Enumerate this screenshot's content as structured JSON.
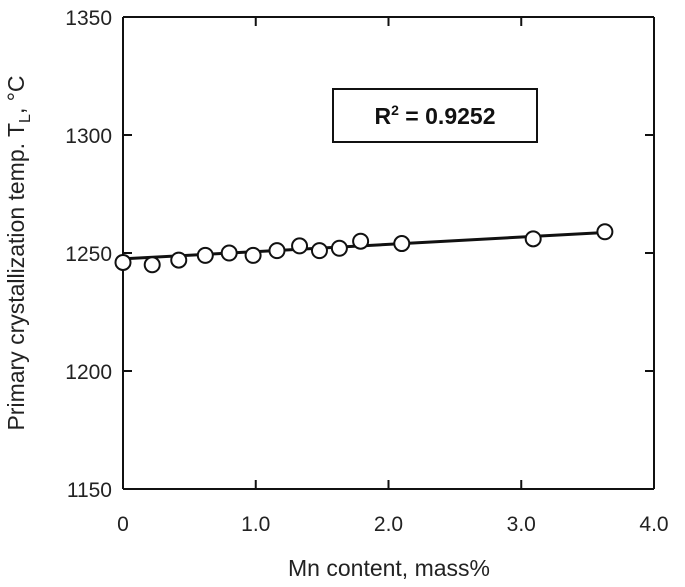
{
  "chart_data": {
    "type": "scatter",
    "title": "",
    "xlabel": "Mn content, mass%",
    "ylabel": {
      "main": "Primary crystallization temp. T",
      "subscript": "L",
      "suffix": ", °C"
    },
    "xlim": [
      0,
      4.0
    ],
    "ylim": [
      1150,
      1350
    ],
    "xticks": [
      "0",
      "1.0",
      "2.0",
      "3.0",
      "4.0"
    ],
    "yticks": [
      "1150",
      "1200",
      "1250",
      "1300",
      "1350"
    ],
    "grid": false,
    "series": [
      {
        "x": [
          0.0,
          0.22,
          0.42,
          0.62,
          0.8,
          0.98,
          1.16,
          1.33,
          1.48,
          1.63,
          1.79,
          2.1,
          3.09,
          3.63
        ],
        "y": [
          1246,
          1245,
          1247,
          1249,
          1250,
          1249,
          1251,
          1253,
          1251,
          1252,
          1255,
          1254,
          1256,
          1259
        ]
      }
    ],
    "trendline": {
      "x": [
        0.0,
        3.63
      ],
      "y": [
        1247.5,
        1258.7
      ]
    },
    "annotation": {
      "r2_prefix": "R",
      "r2_power": "2",
      "r2_value": " = 0.9252"
    }
  }
}
